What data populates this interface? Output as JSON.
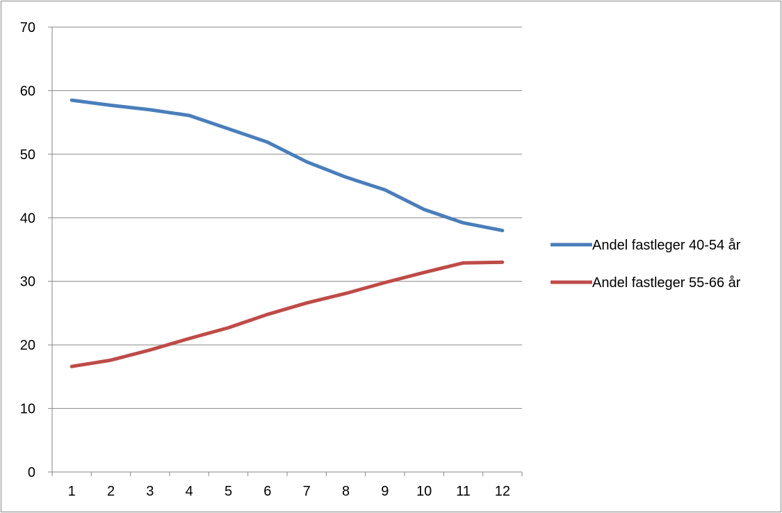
{
  "chart_data": {
    "type": "line",
    "title": "",
    "xlabel": "",
    "ylabel": "",
    "categories": [
      "1",
      "2",
      "3",
      "4",
      "5",
      "6",
      "7",
      "8",
      "9",
      "10",
      "11",
      "12"
    ],
    "ylim": [
      0,
      70
    ],
    "yticks": [
      "0",
      "10",
      "20",
      "30",
      "40",
      "50",
      "60",
      "70"
    ],
    "grid": true,
    "legend_position": "right",
    "series": [
      {
        "name": "Andel fastleger 40-54 år",
        "color": "#4A7EBB",
        "values": [
          58.5,
          57.7,
          57.0,
          56.1,
          54.0,
          51.9,
          48.8,
          46.4,
          44.4,
          41.3,
          39.2,
          38.0
        ]
      },
      {
        "name": "Andel fastleger 55-66 år",
        "color": "#BE4B48",
        "values": [
          16.6,
          17.6,
          19.2,
          21.0,
          22.7,
          24.8,
          26.6,
          28.1,
          29.8,
          31.4,
          32.9,
          33.0
        ]
      }
    ]
  }
}
